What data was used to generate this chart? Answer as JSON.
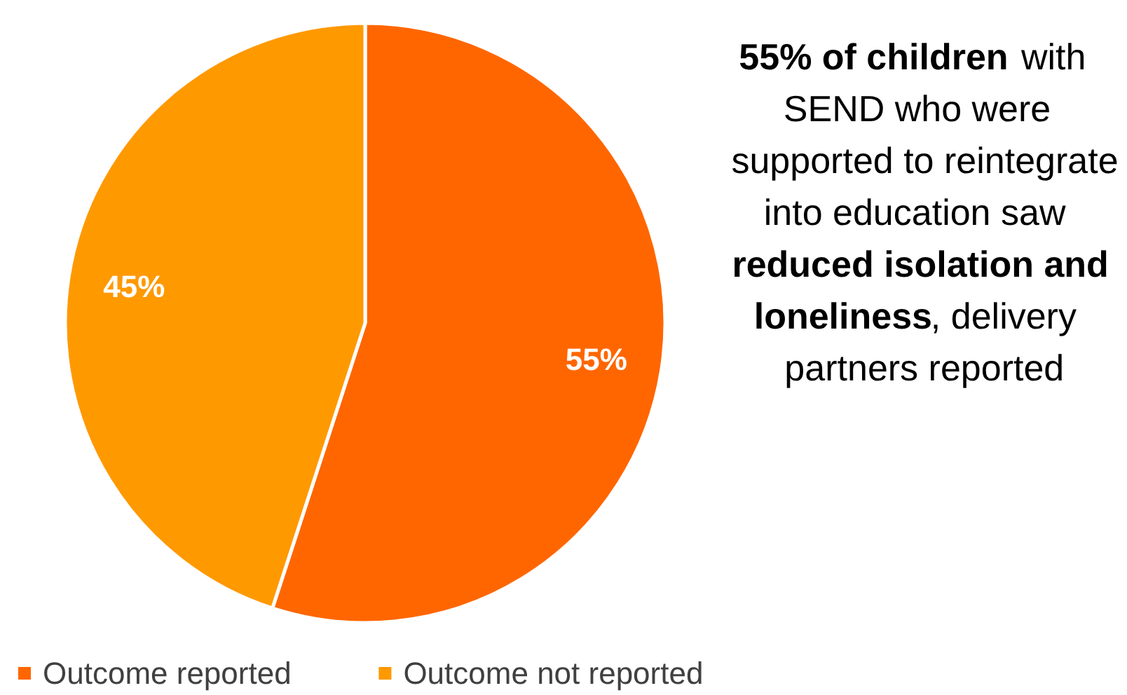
{
  "chart_data": {
    "type": "pie",
    "categories": [
      "Outcome reported",
      "Outcome not reported"
    ],
    "values": [
      55,
      45
    ],
    "colors": [
      "#ff6600",
      "#ff9900"
    ],
    "value_labels": [
      "55%",
      "45%"
    ],
    "legend": "bottom",
    "annotations": [
      "55% of children",
      "with SEND who were supported to reintegrate into education saw",
      "reduced isolation and loneliness",
      ", delivery partners reported"
    ]
  }
}
